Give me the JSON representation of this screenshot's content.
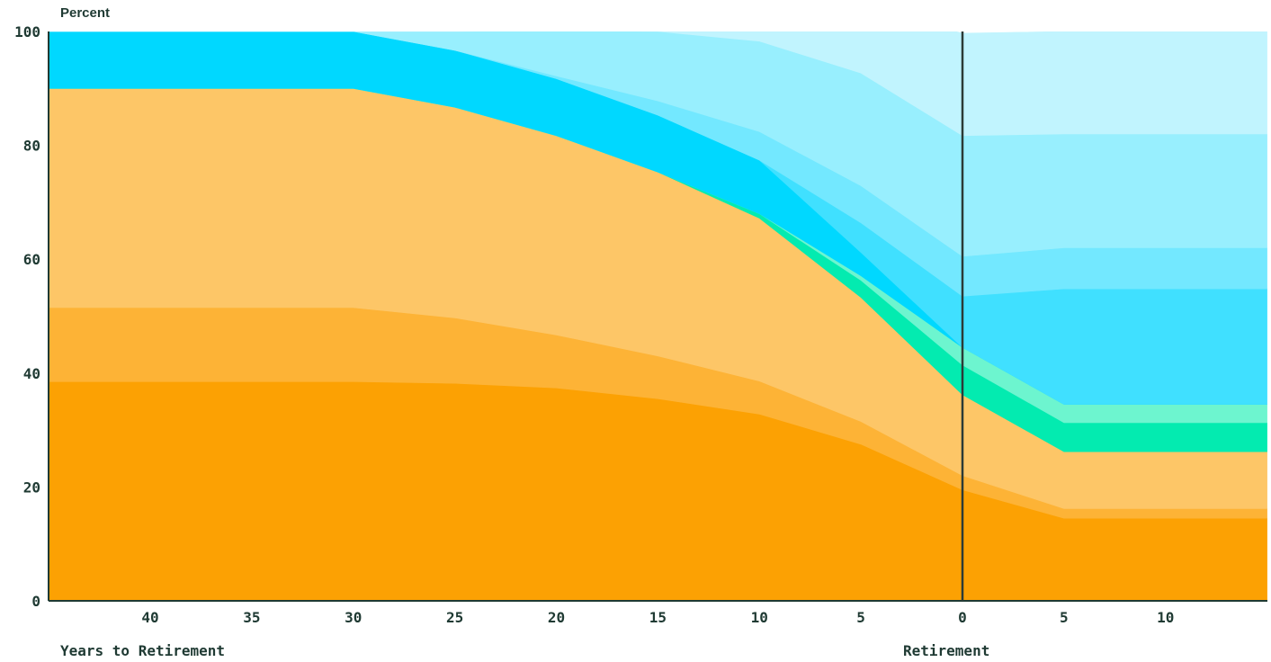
{
  "chart_data": {
    "type": "area",
    "stacked": true,
    "ylabel": "Percent",
    "xlabel": "Years to Retirement",
    "marker_label": "Retirement",
    "ylim": [
      0,
      100
    ],
    "yticks": [
      "0",
      "20",
      "40",
      "60",
      "80",
      "100"
    ],
    "xticks": [
      "40",
      "35",
      "30",
      "25",
      "20",
      "15",
      "10",
      "5",
      "0",
      "5",
      "10"
    ],
    "x_positions": [
      45,
      40,
      35,
      30,
      25,
      20,
      15,
      10,
      5,
      0,
      -5,
      -10,
      -15
    ],
    "grid": false,
    "legend": "none",
    "series": [
      {
        "color": "#fca103",
        "values": [
          38.5,
          38.5,
          38.5,
          38.5,
          38.2,
          37.4,
          35.5,
          32.8,
          27.5,
          19.5,
          14.5,
          14.5,
          14.5
        ]
      },
      {
        "color": "#fdb336",
        "values": [
          13.0,
          13.0,
          13.0,
          13.0,
          11.5,
          9.3,
          7.5,
          5.8,
          4.0,
          2.5,
          1.7,
          1.7,
          1.7
        ]
      },
      {
        "color": "#fdc667",
        "values": [
          38.5,
          38.5,
          38.5,
          38.5,
          37.0,
          35.0,
          32.3,
          28.6,
          21.8,
          14.2,
          10.0,
          10.0,
          10.0
        ]
      },
      {
        "color": "#03ebb0",
        "values": [
          0,
          0,
          0,
          0,
          0,
          0,
          0,
          0.8,
          3.0,
          5.2,
          5.1,
          5.1,
          5.1
        ]
      },
      {
        "color": "#6df5cf",
        "values": [
          0,
          0,
          0,
          0,
          0,
          0,
          0,
          0,
          0.8,
          3.1,
          3.2,
          3.2,
          3.2
        ]
      },
      {
        "color": "#00d8ff",
        "values": [
          10.0,
          10.0,
          10.0,
          10.0,
          10.0,
          10.0,
          10.0,
          9.4,
          4.1,
          0,
          0,
          0,
          0
        ]
      },
      {
        "color": "#40e0ff",
        "values": [
          0,
          0,
          0,
          0,
          0,
          0,
          0,
          0,
          5.2,
          9.0,
          20.3,
          20.3,
          20.3
        ]
      },
      {
        "color": "#73e8ff",
        "values": [
          0,
          0,
          0,
          0,
          0,
          0.5,
          2.5,
          5.0,
          6.5,
          7.0,
          7.2,
          7.2,
          7.2
        ]
      },
      {
        "color": "#98effe",
        "values": [
          0,
          0,
          0,
          0,
          3.3,
          8.0,
          12.2,
          15.9,
          19.8,
          21.2,
          20.0,
          20.0,
          20.0
        ]
      },
      {
        "color": "#c1f4fe",
        "values": [
          0,
          0,
          0,
          0,
          0,
          0,
          0,
          2.5,
          11.5,
          18.0,
          18.0,
          18.0,
          18.0
        ]
      }
    ]
  }
}
